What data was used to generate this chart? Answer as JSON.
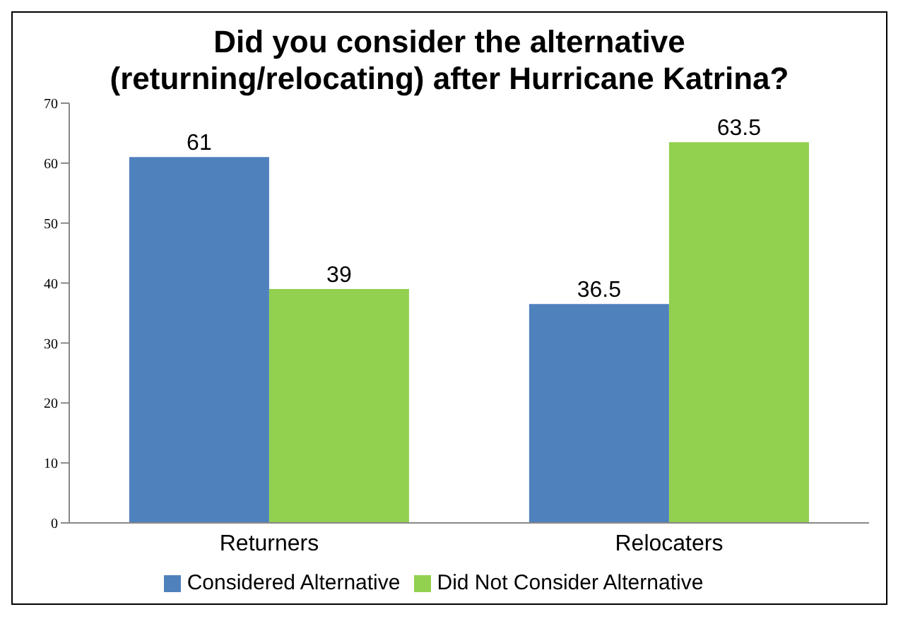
{
  "chart_data": {
    "type": "bar",
    "title": "Did you consider the alternative (returning/relocating) after Hurricane Katrina?",
    "categories": [
      "Returners",
      "Relocaters"
    ],
    "series": [
      {
        "name": "Considered Alternative",
        "color": "#4f81bd",
        "values": [
          61,
          36.5
        ]
      },
      {
        "name": "Did Not Consider Alternative",
        "color": "#92d050",
        "values": [
          39,
          63.5
        ]
      }
    ],
    "ylim": [
      0,
      70
    ],
    "yticks": [
      0,
      10,
      20,
      30,
      40,
      50,
      60,
      70
    ],
    "grid": false,
    "legend": "bottom",
    "data_labels": true
  }
}
